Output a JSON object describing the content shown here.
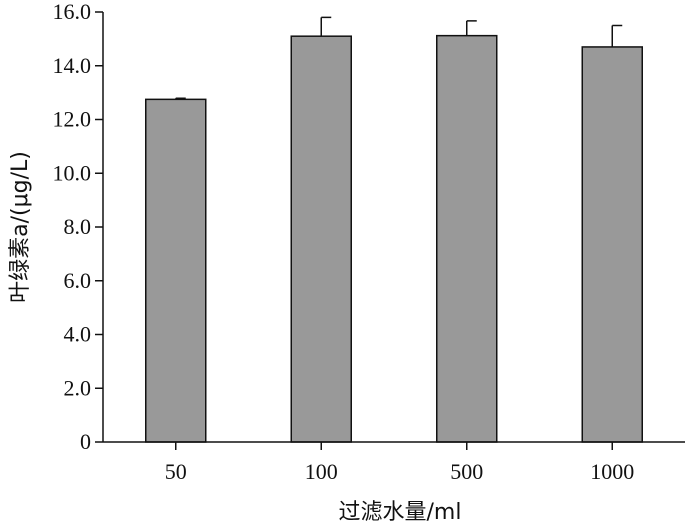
{
  "chart_data": {
    "type": "bar",
    "categories": [
      "50",
      "100",
      "500",
      "1000"
    ],
    "values": [
      12.75,
      15.1,
      15.12,
      14.7
    ],
    "errors": [
      0.04,
      0.7,
      0.55,
      0.8
    ],
    "title": "",
    "xlabel": "过滤水量/ml",
    "ylabel": "叶绿素a/(μg/L)",
    "ylim": [
      0,
      16
    ],
    "yticks": [
      0,
      2,
      4,
      6,
      8,
      10,
      12,
      14,
      16
    ],
    "ytick_labels": [
      "0",
      "2.0",
      "4.0",
      "6.0",
      "8.0",
      "10.0",
      "12.0",
      "14.0",
      "16.0"
    ],
    "grid": false,
    "bar_color": "#999999"
  }
}
